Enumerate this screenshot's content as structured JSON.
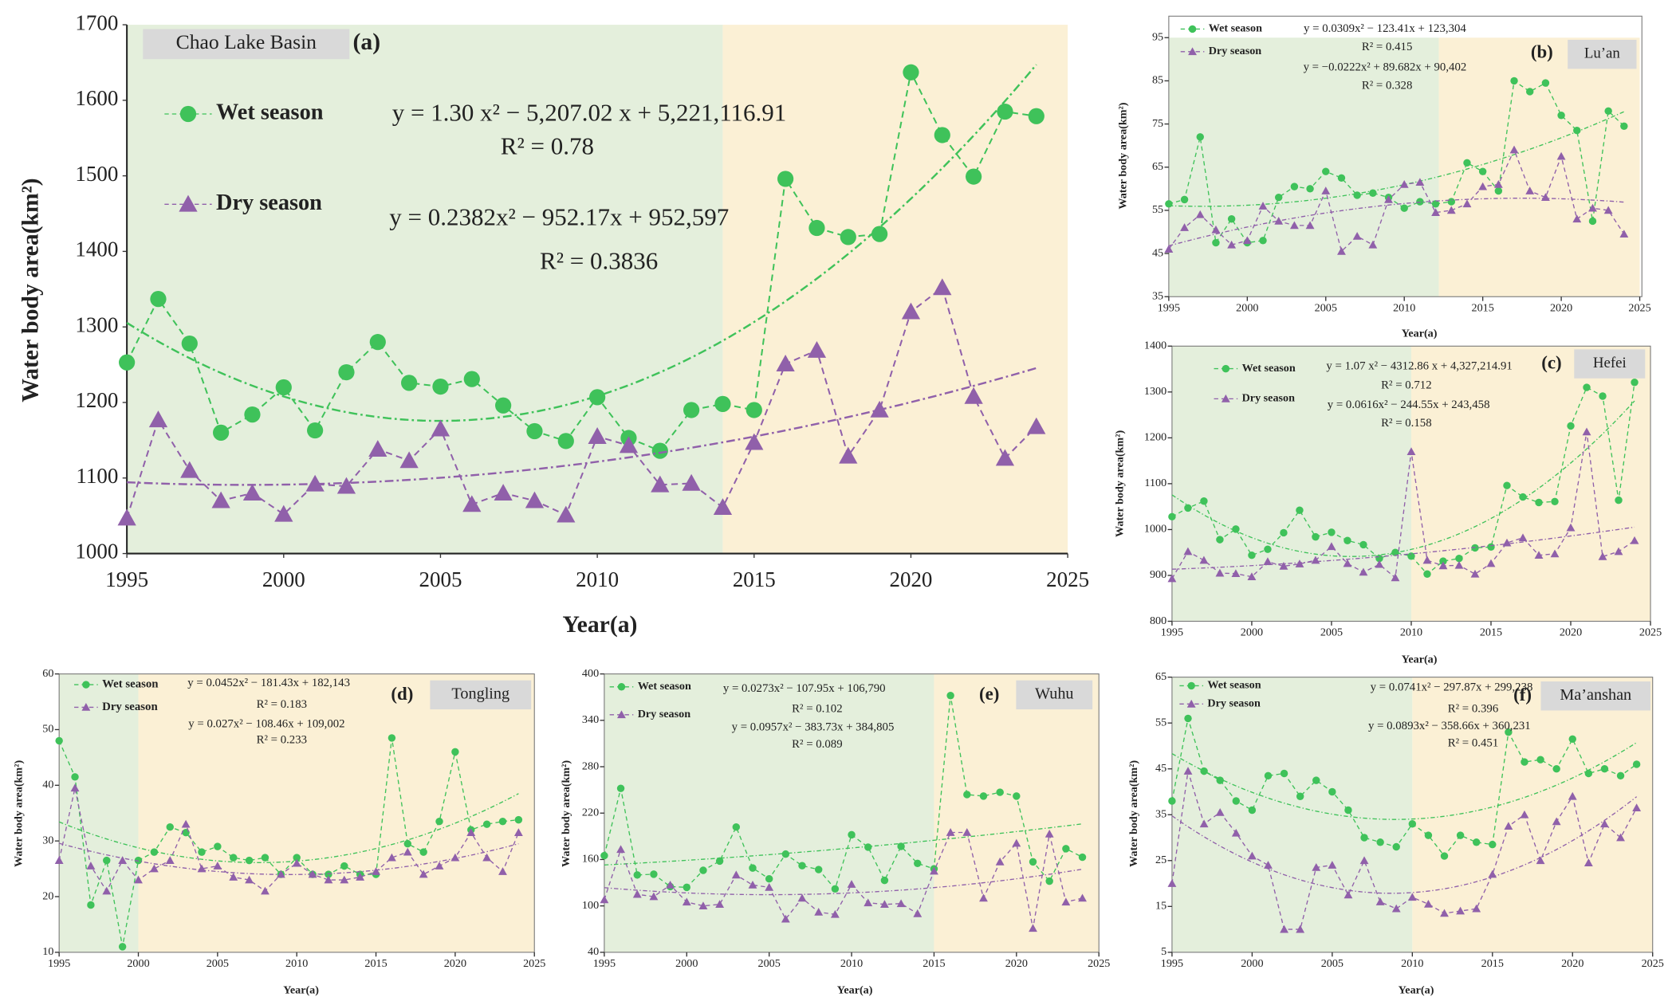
{
  "chart_data": [
    {
      "type": "line",
      "title": "Chao Lake Basin",
      "panel_label": "(a)",
      "x_label": "Year(a)",
      "y_label": "Water body area(km²)",
      "x": [
        1995,
        1996,
        1997,
        1998,
        1999,
        2000,
        2001,
        2002,
        2003,
        2004,
        2005,
        2006,
        2007,
        2008,
        2009,
        2010,
        2011,
        2012,
        2013,
        2014,
        2015,
        2016,
        2017,
        2018,
        2019,
        2020,
        2021,
        2022,
        2023,
        2024
      ],
      "series": [
        {
          "name": "Wet season",
          "color": "#3fc25a",
          "marker": "circle",
          "values": [
            1253,
            1337,
            1278,
            1160,
            1184,
            1220,
            1163,
            1240,
            1280,
            1226,
            1221,
            1231,
            1196,
            1162,
            1149,
            1207,
            1153,
            1136,
            1190,
            1198,
            1190,
            1496,
            1431,
            1419,
            1423,
            1637,
            1554,
            1499,
            1585,
            1579
          ]
        },
        {
          "name": "Dry season",
          "color": "#9060aa",
          "marker": "triangle",
          "values": [
            1047,
            1177,
            1110,
            1070,
            1080,
            1052,
            1092,
            1089,
            1138,
            1123,
            1165,
            1065,
            1080,
            1070,
            1051,
            1155,
            1143,
            1091,
            1093,
            1061,
            1147,
            1251,
            1269,
            1129,
            1190,
            1320,
            1352,
            1208,
            1126,
            1168
          ]
        }
      ],
      "annotations": [
        "y = 1.30 x² − 5,207.02 x + 5,221,116.91",
        "R² = 0.78",
        "y = 0.2382x² − 952.17x + 952,597",
        "R² = 0.3836"
      ],
      "xlim": [
        1995,
        2025
      ],
      "xticks": [
        1995,
        2000,
        2005,
        2010,
        2015,
        2020,
        2025
      ],
      "ylim": [
        1000,
        1700
      ],
      "yticks": [
        1000,
        1100,
        1200,
        1300,
        1400,
        1500,
        1600,
        1700
      ],
      "shade": {
        "split": 2014,
        "colors": [
          "#e4efdc",
          "#fbf0d5"
        ]
      }
    },
    {
      "type": "line",
      "title": "Lu’an",
      "panel_label": "(b)",
      "x_label": "Year(a)",
      "y_label": "Water body area(km²)",
      "x": [
        1995,
        1996,
        1997,
        1998,
        1999,
        2000,
        2001,
        2002,
        2003,
        2004,
        2005,
        2006,
        2007,
        2008,
        2009,
        2010,
        2011,
        2012,
        2013,
        2014,
        2015,
        2016,
        2017,
        2018,
        2019,
        2020,
        2021,
        2022,
        2023,
        2024
      ],
      "series": [
        {
          "name": "Wet season",
          "color": "#3fc25a",
          "marker": "circle",
          "values": [
            56.5,
            57.5,
            72,
            47.5,
            53,
            47.5,
            48,
            58,
            60.5,
            60,
            64,
            62.5,
            58.5,
            59,
            58,
            55.5,
            57,
            56.5,
            57,
            66,
            64,
            59.5,
            85,
            82.5,
            84.5,
            77,
            73.5,
            52.5,
            78,
            74.5
          ]
        },
        {
          "name": "Dry season",
          "color": "#9060aa",
          "marker": "triangle",
          "values": [
            46,
            51,
            54,
            50.5,
            47,
            48,
            56,
            52.5,
            51.5,
            51.5,
            59.5,
            45.5,
            49,
            47,
            57.5,
            61,
            61.5,
            54.5,
            55,
            56.5,
            60.5,
            61,
            69,
            59.5,
            58,
            67.5,
            53,
            55.5,
            55,
            49.5
          ]
        }
      ],
      "annotations": [
        "y = 0.0309x² − 123.41x + 123,304",
        "R² = 0.415",
        "y = −0.0222x² + 89.682x + 90,402",
        "R² = 0.328"
      ],
      "xlim": [
        1995,
        2025
      ],
      "xticks": [
        1995,
        2000,
        2005,
        2010,
        2015,
        2020,
        2025
      ],
      "ylim": [
        35,
        95
      ],
      "yticks": [
        35,
        45,
        55,
        65,
        75,
        85,
        95
      ],
      "shade": {
        "split": 2012.2,
        "colors": [
          "#e4efdc",
          "#fbf0d5"
        ]
      }
    },
    {
      "type": "line",
      "title": "Hefei",
      "panel_label": "(c)",
      "x_label": "Year(a)",
      "y_label": "Water body area(km²)",
      "x": [
        1995,
        1996,
        1997,
        1998,
        1999,
        2000,
        2001,
        2002,
        2003,
        2004,
        2005,
        2006,
        2007,
        2008,
        2009,
        2010,
        2011,
        2012,
        2013,
        2014,
        2015,
        2016,
        2017,
        2018,
        2019,
        2020,
        2021,
        2022,
        2023,
        2024
      ],
      "series": [
        {
          "name": "Wet season",
          "color": "#3fc25a",
          "marker": "circle",
          "values": [
            1028,
            1047,
            1062,
            978,
            1001,
            944,
            957,
            993,
            1042,
            984,
            994,
            976,
            967,
            937,
            950,
            942,
            903,
            931,
            937,
            960,
            962,
            1096,
            1071,
            1059,
            1061,
            1226,
            1310,
            1291,
            1064,
            1321
          ]
        },
        {
          "name": "Dry season",
          "color": "#9060aa",
          "marker": "triangle",
          "values": [
            893,
            952,
            933,
            905,
            904,
            897,
            930,
            920,
            925,
            933,
            963,
            926,
            907,
            924,
            895,
            1170,
            933,
            921,
            922,
            903,
            926,
            971,
            982,
            944,
            947,
            1004,
            1213,
            941,
            952,
            976
          ]
        }
      ],
      "annotations": [
        "y = 1.07 x² − 4312.86 x + 4,327,214.91",
        "R² = 0.712",
        "y = 0.0616x² − 244.55x + 243,458",
        "R² = 0.158"
      ],
      "xlim": [
        1995,
        2025
      ],
      "xticks": [
        1995,
        2000,
        2005,
        2010,
        2015,
        2020,
        2025
      ],
      "ylim": [
        800,
        1400
      ],
      "yticks": [
        800,
        900,
        1000,
        1100,
        1200,
        1300,
        1400
      ],
      "shade": {
        "split": 2010,
        "colors": [
          "#e4efdc",
          "#fbf0d5"
        ]
      }
    },
    {
      "type": "line",
      "title": "Tongling",
      "panel_label": "(d)",
      "x_label": "Year(a)",
      "y_label": "Water body area(km²)",
      "x": [
        1995,
        1996,
        1997,
        1998,
        1999,
        2000,
        2001,
        2002,
        2003,
        2004,
        2005,
        2006,
        2007,
        2008,
        2009,
        2010,
        2011,
        2012,
        2013,
        2014,
        2015,
        2016,
        2017,
        2018,
        2019,
        2020,
        2021,
        2022,
        2023,
        2024
      ],
      "series": [
        {
          "name": "Wet season",
          "color": "#3fc25a",
          "marker": "circle",
          "values": [
            48,
            41.5,
            18.5,
            26.5,
            11,
            26.5,
            28,
            32.5,
            31.5,
            28,
            29,
            27,
            26.5,
            27,
            24,
            27,
            24,
            24,
            25.5,
            24,
            24,
            48.5,
            29.5,
            28,
            33.5,
            46,
            32,
            33,
            33.5,
            33.8
          ]
        },
        {
          "name": "Dry season",
          "color": "#9060aa",
          "marker": "triangle",
          "values": [
            26.5,
            39.5,
            25.5,
            21,
            26.5,
            23,
            25,
            26.5,
            33,
            25,
            25.5,
            23.5,
            23,
            21,
            24,
            26,
            24,
            23,
            23,
            23.5,
            24.5,
            27,
            28,
            24,
            25.5,
            27,
            31.5,
            27,
            24.5,
            31.5
          ]
        }
      ],
      "annotations": [
        "y = 0.0452x² − 181.43x + 182,143",
        "R² = 0.183",
        "y = 0.027x² − 108.46x + 109,002",
        "R² = 0.233"
      ],
      "xlim": [
        1995,
        2025
      ],
      "xticks": [
        1995,
        2000,
        2005,
        2010,
        2015,
        2020,
        2025
      ],
      "ylim": [
        10,
        60
      ],
      "yticks": [
        10,
        20,
        30,
        40,
        50,
        60
      ],
      "shade": {
        "split": 2000,
        "colors": [
          "#e4efdc",
          "#fbf0d5"
        ]
      }
    },
    {
      "type": "line",
      "title": "Wuhu",
      "panel_label": "(e)",
      "x_label": "Year(a)",
      "y_label": "Water body area(km²)",
      "x": [
        1995,
        1996,
        1997,
        1998,
        1999,
        2000,
        2001,
        2002,
        2003,
        2004,
        2005,
        2006,
        2007,
        2008,
        2009,
        2010,
        2011,
        2012,
        2013,
        2014,
        2015,
        2016,
        2017,
        2018,
        2019,
        2020,
        2021,
        2022,
        2023,
        2024
      ],
      "series": [
        {
          "name": "Wet season",
          "color": "#3fc25a",
          "marker": "circle",
          "values": [
            165,
            252,
            140,
            141,
            125,
            124,
            146,
            158,
            202,
            149,
            135,
            167,
            152,
            147,
            122,
            192,
            176,
            133,
            177,
            155,
            148,
            372,
            244,
            242,
            247,
            242,
            157,
            132,
            174,
            163
          ]
        },
        {
          "name": "Dry season",
          "color": "#9060aa",
          "marker": "triangle",
          "values": [
            108,
            173,
            115,
            112,
            127,
            105,
            100,
            102,
            140,
            127,
            124,
            83,
            110,
            92,
            89,
            128,
            104,
            102,
            103,
            90,
            145,
            195,
            195,
            110,
            157,
            181,
            71,
            193,
            105,
            110
          ]
        }
      ],
      "annotations": [
        "y = 0.0273x² − 107.95x + 106,790",
        "R² = 0.102",
        "y = 0.0957x² − 383.73x + 384,805",
        "R² = 0.089"
      ],
      "xlim": [
        1995,
        2025
      ],
      "xticks": [
        1995,
        2000,
        2005,
        2010,
        2015,
        2020,
        2025
      ],
      "ylim": [
        40,
        400
      ],
      "yticks": [
        40,
        100,
        160,
        220,
        280,
        340,
        400
      ],
      "shade": {
        "split": 2015,
        "colors": [
          "#e4efdc",
          "#fbf0d5"
        ]
      }
    },
    {
      "type": "line",
      "title": "Ma’anshan",
      "panel_label": "(f)",
      "x_label": "Year(a)",
      "y_label": "Water body area(km²)",
      "x": [
        1995,
        1996,
        1997,
        1998,
        1999,
        2000,
        2001,
        2002,
        2003,
        2004,
        2005,
        2006,
        2007,
        2008,
        2009,
        2010,
        2011,
        2012,
        2013,
        2014,
        2015,
        2016,
        2017,
        2018,
        2019,
        2020,
        2021,
        2022,
        2023,
        2024
      ],
      "series": [
        {
          "name": "Wet season",
          "color": "#3fc25a",
          "marker": "circle",
          "values": [
            38,
            56,
            44.5,
            42.5,
            38,
            36,
            43.5,
            44,
            39,
            42.5,
            40,
            36,
            30,
            29,
            28,
            33,
            30.5,
            26,
            30.5,
            29,
            28.5,
            53,
            46.5,
            47,
            45,
            51.5,
            44,
            45,
            43.5,
            46
          ]
        },
        {
          "name": "Dry season",
          "color": "#9060aa",
          "marker": "triangle",
          "values": [
            20,
            44.5,
            33,
            35.5,
            31,
            26,
            24,
            10,
            10,
            23.5,
            24,
            17.5,
            25,
            16,
            14.5,
            17,
            15.5,
            13.5,
            14,
            14.5,
            22,
            32.5,
            35,
            25,
            33.5,
            39,
            24.5,
            33,
            30,
            36.5
          ]
        }
      ],
      "annotations": [
        "y = 0.0741x² − 297.87x + 299,238",
        "R² = 0.396",
        "y = 0.0893x² − 358.66x + 360,231",
        "R² = 0.451"
      ],
      "xlim": [
        1995,
        2025
      ],
      "xticks": [
        1995,
        2000,
        2005,
        2010,
        2015,
        2020,
        2025
      ],
      "ylim": [
        5,
        65
      ],
      "yticks": [
        5,
        15,
        25,
        35,
        45,
        55,
        65
      ],
      "shade": {
        "split": 2010,
        "colors": [
          "#e4efdc",
          "#fbf0d5"
        ]
      }
    }
  ]
}
